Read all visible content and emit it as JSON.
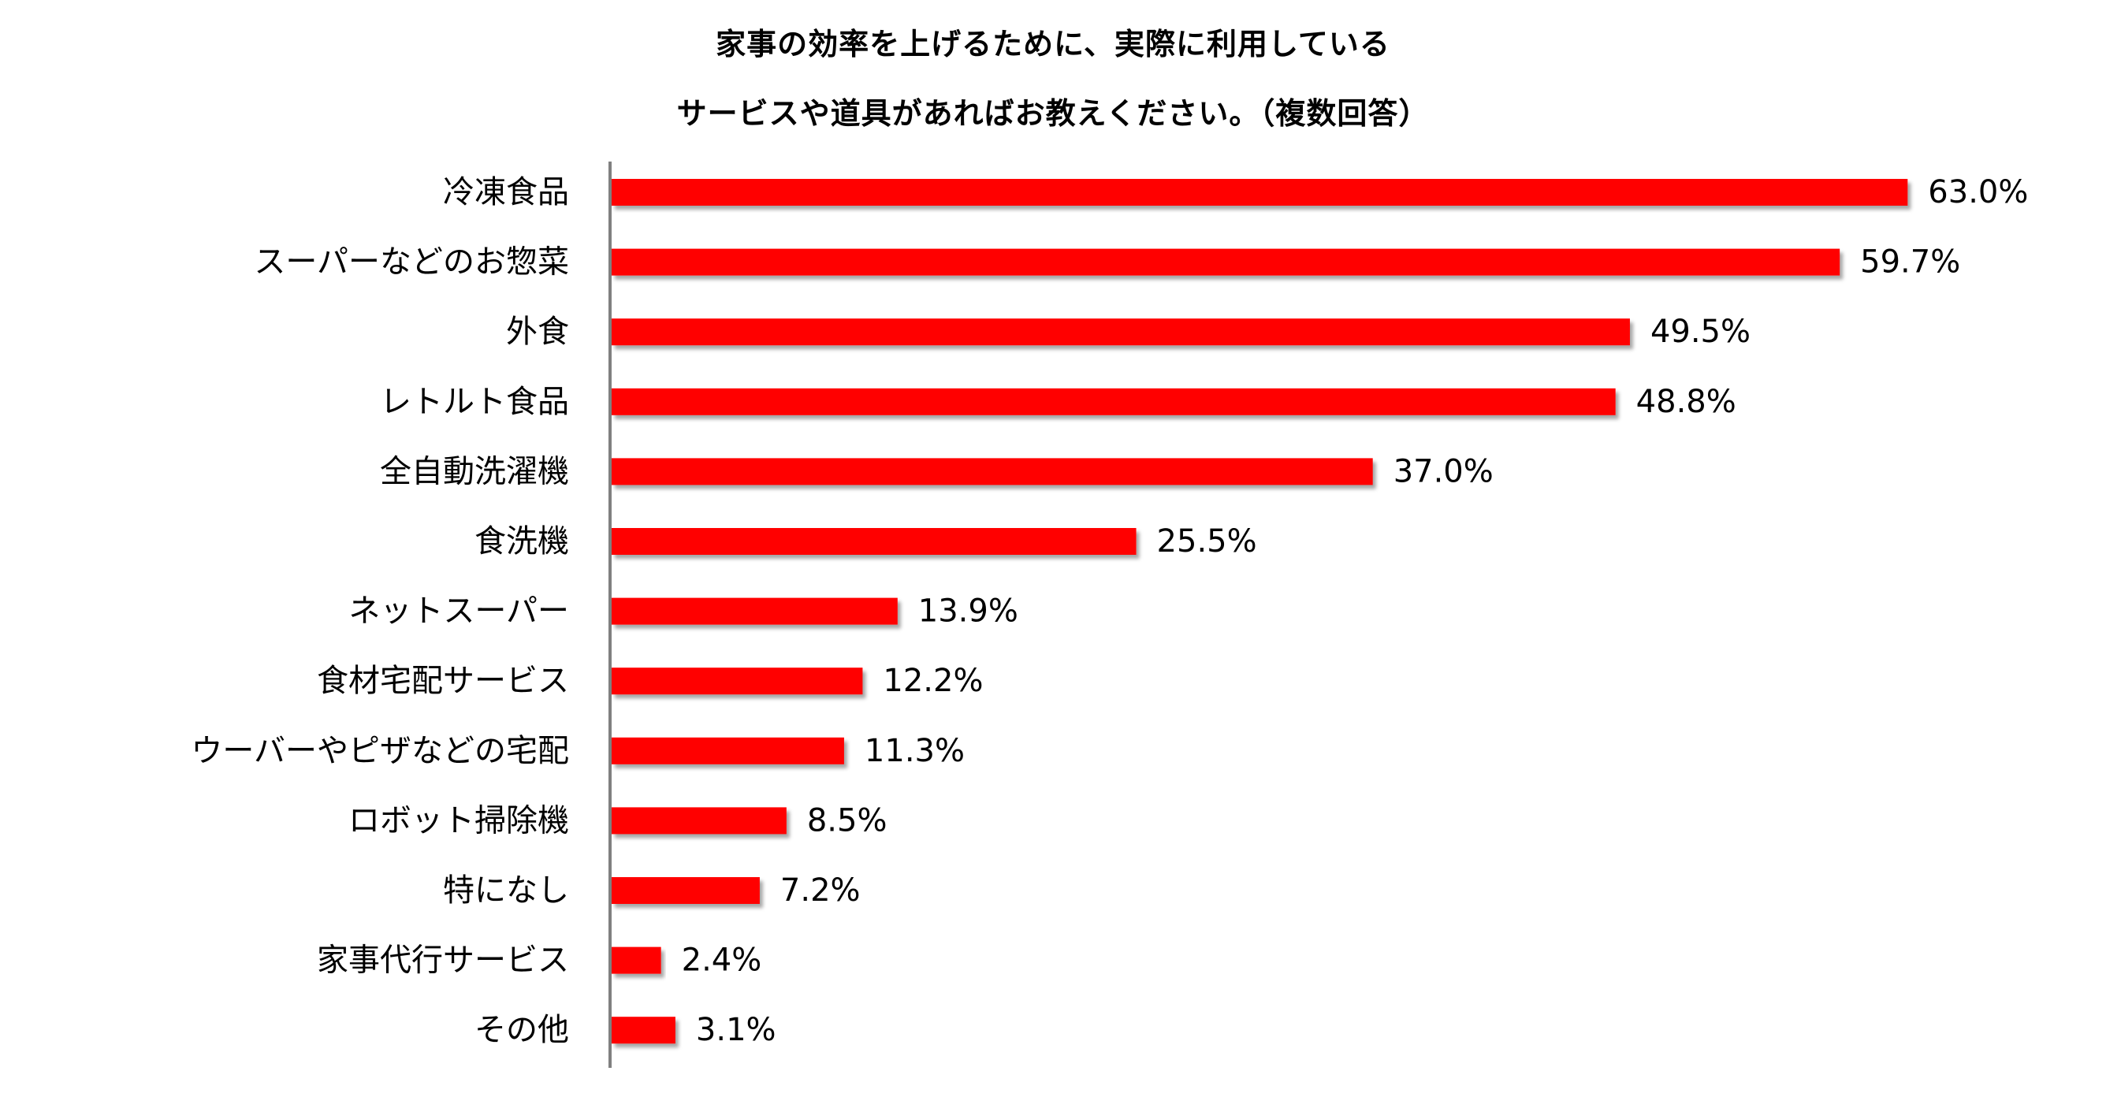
{
  "chart_data": {
    "type": "bar",
    "orientation": "horizontal",
    "title_lines": [
      "家事の効率を上げるために、実際に利用している",
      "サービスや道具があればお教えください。（複数回答）"
    ],
    "categories": [
      "冷凍食品",
      "スーパーなどのお惣菜",
      "外食",
      "レトルト食品",
      "全自動洗濯機",
      "食洗機",
      "ネットスーパー",
      "食材宅配サービス",
      "ウーバーやピザなどの宅配",
      "ロボット掃除機",
      "特になし",
      "家事代行サービス",
      "その他"
    ],
    "values": [
      63.0,
      59.7,
      49.5,
      48.8,
      37.0,
      25.5,
      13.9,
      12.2,
      11.3,
      8.5,
      7.2,
      2.4,
      3.1
    ],
    "value_labels": [
      "63.0%",
      "59.7%",
      "49.5%",
      "48.8%",
      "37.0%",
      "25.5%",
      "13.9%",
      "12.2%",
      "11.3%",
      "8.5%",
      "7.2%",
      "2.4%",
      "3.1%"
    ],
    "bar_color": "#FF0000",
    "axis_color": "#808080",
    "grid": false,
    "legend": "none"
  }
}
